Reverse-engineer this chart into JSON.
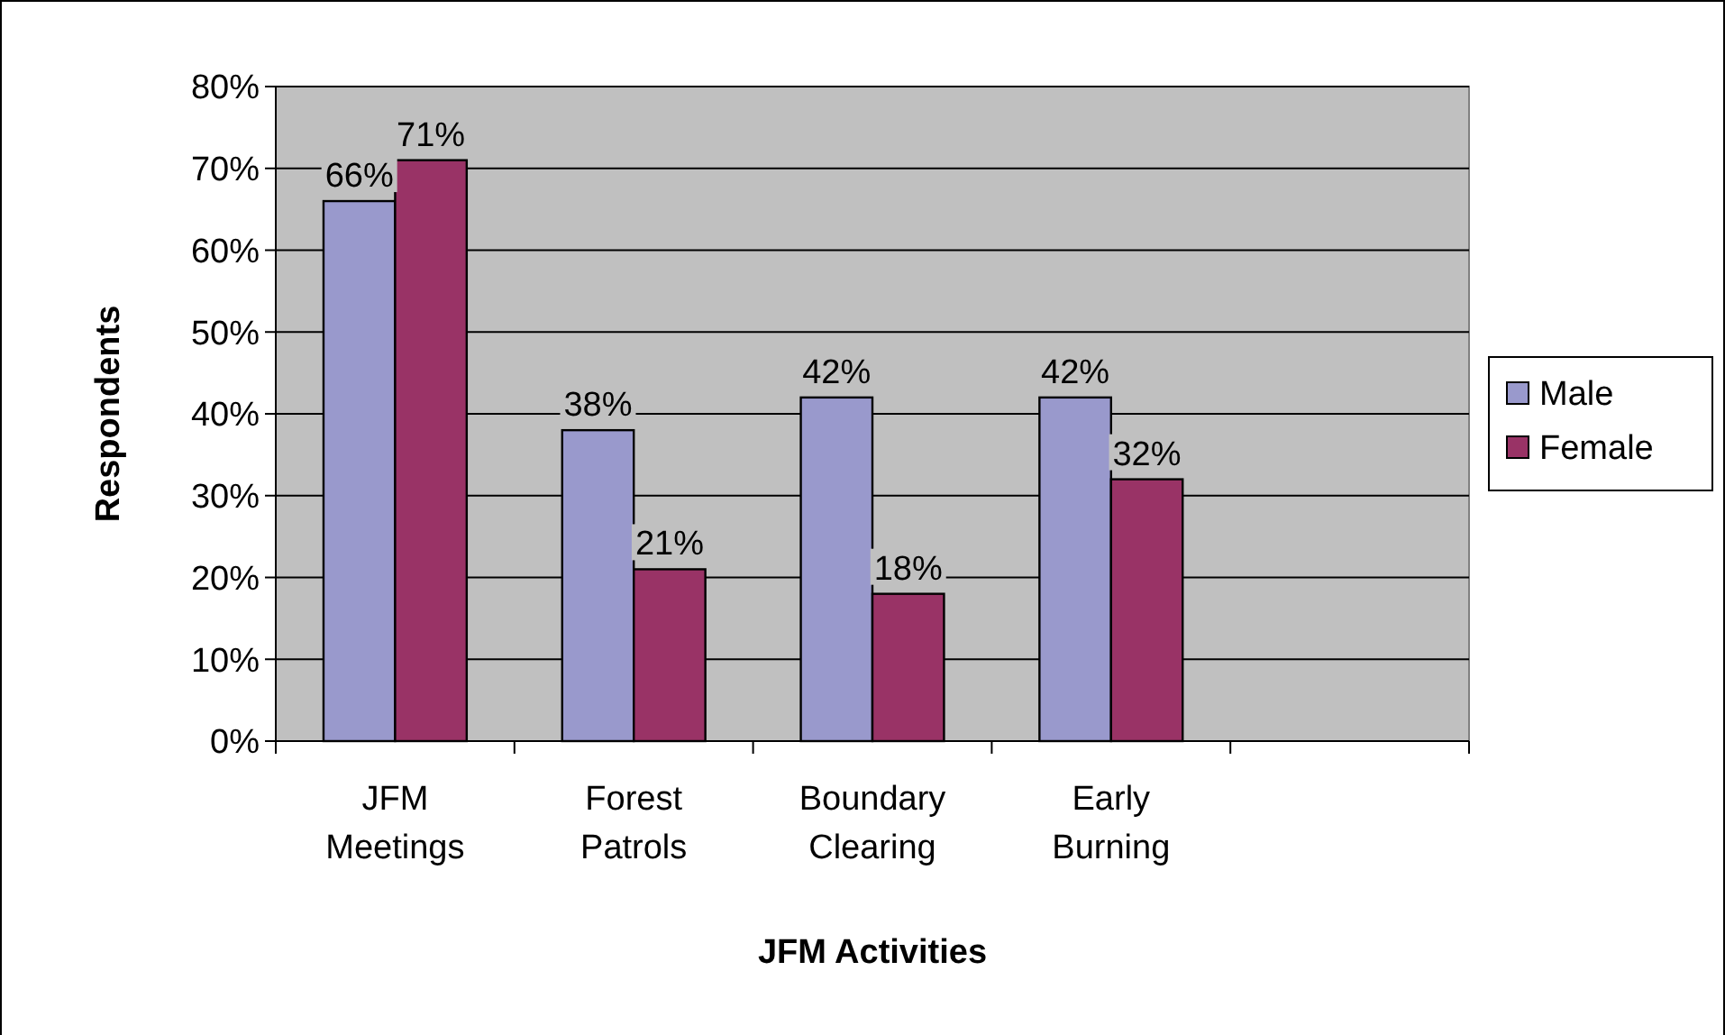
{
  "chart_data": {
    "type": "bar",
    "xlabel": "JFM Activities",
    "ylabel": "Respondents",
    "categories": [
      "JFM Meetings",
      "Forest Patrols",
      "Boundary Clearing",
      "Early Burning",
      null
    ],
    "series": [
      {
        "name": "Male",
        "color": "#9999cc",
        "values": [
          66,
          38,
          42,
          42,
          null
        ],
        "value_labels": [
          "66%",
          "38%",
          "42%",
          "42%",
          null
        ]
      },
      {
        "name": "Female",
        "color": "#993366",
        "values": [
          71,
          21,
          18,
          32,
          null
        ],
        "value_labels": [
          "71%",
          "21%",
          "18%",
          "32%",
          null
        ]
      }
    ],
    "ylim": [
      0,
      80
    ],
    "yticks": [
      {
        "value": 0,
        "label": "0%"
      },
      {
        "value": 10,
        "label": "10%"
      },
      {
        "value": 20,
        "label": "20%"
      },
      {
        "value": 30,
        "label": "30%"
      },
      {
        "value": 40,
        "label": "40%"
      },
      {
        "value": 50,
        "label": "50%"
      },
      {
        "value": 60,
        "label": "60%"
      },
      {
        "value": 70,
        "label": "70%"
      },
      {
        "value": 80,
        "label": "80%"
      }
    ],
    "grid": "y",
    "legend": "right"
  }
}
